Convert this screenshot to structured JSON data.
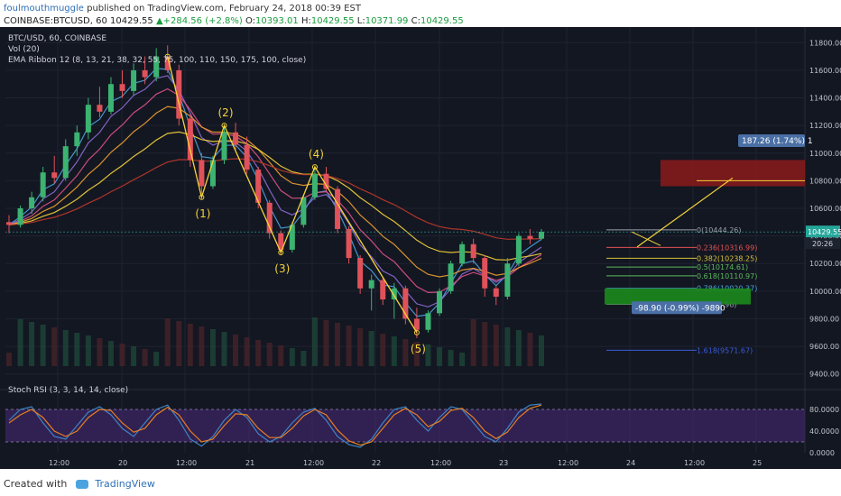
{
  "header": {
    "author": "foulmouthmuggle",
    "published": "published on TradingView.com, February 24, 2018 00:39 EST",
    "symbol": "COINBASE:BTCUSD, 60",
    "last": "10429.55",
    "change": "+284.56 (+2.8%)",
    "o_label": "O:",
    "o_val": "10393.01",
    "h_label": "H:",
    "h_val": "10429.55",
    "l_label": "L:",
    "l_val": "10371.99",
    "c_label": "C:",
    "c_val": "10429.55"
  },
  "legend": {
    "title": "BTC/USD, 60, COINBASE",
    "vol": "Vol (20)",
    "ema": "EMA Ribbon 12 (8, 13, 21, 38, 32, 55, 75, 100, 110, 150, 175, 100, close)",
    "stoch": "Stoch RSI (3, 3, 14, 14, close)"
  },
  "footer": {
    "created": "Created with",
    "brand": "TradingView"
  },
  "colors": {
    "bg": "#131722",
    "up": "#26a69a",
    "down": "#ef5350",
    "upc": "#3cb371",
    "downc": "#e0525a",
    "fib_box_top": "#8b1a1a",
    "fib_box_bottom": "#1d8a1d",
    "yellow": "#f5d33a"
  },
  "chart_data": {
    "type": "candlestick",
    "x_ticks": [
      "12:00",
      "20",
      "12:00",
      "21",
      "12:00",
      "22",
      "12:00",
      "23",
      "12:00",
      "24",
      "12:00",
      "25"
    ],
    "y_ticks": [
      11800,
      11600,
      11400,
      11200,
      11000,
      10800,
      10600,
      10400,
      10200,
      10000,
      9800,
      9600,
      9400
    ],
    "ylim": [
      9300,
      11900
    ],
    "stoch_ticks": [
      "80.0000",
      "40.0000",
      "0.0000"
    ],
    "price_label": "10429.55",
    "time_label": "20:26",
    "wave_labels": [
      "(1)",
      "(2)",
      "(3)",
      "(4)",
      "(5)"
    ],
    "wave_points": [
      [
        0.0,
        11700
      ],
      [
        1.0,
        10680
      ],
      [
        2.0,
        11200
      ],
      [
        3.0,
        10280
      ],
      [
        4.0,
        10900
      ],
      [
        5.0,
        9700
      ]
    ],
    "fib_levels": [
      {
        "label": "0(10444.26)",
        "value": 10444.26,
        "color": "#9aa0ab"
      },
      {
        "label": "0.236(10316.99)",
        "value": 10316.99,
        "color": "#e05252"
      },
      {
        "label": "0.382(10238.25)",
        "value": 10238.25,
        "color": "#d6c23a"
      },
      {
        "label": "0.5(10174.61)",
        "value": 10174.61,
        "color": "#5cb85c"
      },
      {
        "label": "0.618(10110.97)",
        "value": 10110.97,
        "color": "#5cb85c"
      },
      {
        "label": "0.786(10020.37)",
        "value": 10020.37,
        "color": "#4aa3df"
      },
      {
        "label": "1(9904.96)",
        "value": 9904.96,
        "color": "#9aa0ab"
      },
      {
        "label": "1.618(9571.67)",
        "value": 9571.67,
        "color": "#3b5bdb"
      }
    ],
    "target_label": "187.26 (1.74%) 1",
    "stop_label": "-98.90 (-0.99%) -9890",
    "candles": [
      [
        10500,
        10550,
        10420,
        10480
      ],
      [
        10480,
        10620,
        10460,
        10600
      ],
      [
        10600,
        10720,
        10560,
        10680
      ],
      [
        10680,
        10900,
        10650,
        10860
      ],
      [
        10860,
        10980,
        10780,
        10820
      ],
      [
        10820,
        11100,
        10800,
        11050
      ],
      [
        11050,
        11200,
        10980,
        11150
      ],
      [
        11150,
        11400,
        11100,
        11350
      ],
      [
        11350,
        11480,
        11260,
        11300
      ],
      [
        11300,
        11550,
        11280,
        11500
      ],
      [
        11500,
        11600,
        11400,
        11450
      ],
      [
        11450,
        11650,
        11420,
        11600
      ],
      [
        11600,
        11700,
        11500,
        11550
      ],
      [
        11550,
        11760,
        11520,
        11700
      ],
      [
        11700,
        11780,
        11580,
        11600
      ],
      [
        11600,
        11640,
        11200,
        11250
      ],
      [
        11250,
        11280,
        10900,
        10950
      ],
      [
        10950,
        11000,
        10700,
        10760
      ],
      [
        10760,
        10980,
        10740,
        10950
      ],
      [
        10950,
        11200,
        10920,
        11150
      ],
      [
        11150,
        11220,
        11020,
        11060
      ],
      [
        11060,
        11120,
        10850,
        10880
      ],
      [
        10880,
        10900,
        10600,
        10640
      ],
      [
        10640,
        10660,
        10380,
        10420
      ],
      [
        10420,
        10440,
        10260,
        10300
      ],
      [
        10300,
        10500,
        10280,
        10480
      ],
      [
        10480,
        10700,
        10460,
        10680
      ],
      [
        10680,
        10880,
        10660,
        10850
      ],
      [
        10850,
        10900,
        10720,
        10740
      ],
      [
        10740,
        10760,
        10420,
        10450
      ],
      [
        10450,
        10470,
        10200,
        10240
      ],
      [
        10240,
        10260,
        9980,
        10020
      ],
      [
        10020,
        10120,
        9860,
        10080
      ],
      [
        10080,
        10100,
        9900,
        9940
      ],
      [
        9940,
        10060,
        9800,
        10020
      ],
      [
        10020,
        10040,
        9760,
        9800
      ],
      [
        9800,
        9880,
        9660,
        9720
      ],
      [
        9720,
        9860,
        9700,
        9840
      ],
      [
        9840,
        10020,
        9820,
        10000
      ],
      [
        10000,
        10220,
        9980,
        10200
      ],
      [
        10200,
        10360,
        10180,
        10340
      ],
      [
        10340,
        10380,
        10200,
        10240
      ],
      [
        10240,
        10260,
        9960,
        10020
      ],
      [
        10020,
        10040,
        9900,
        9960
      ],
      [
        9960,
        10240,
        9940,
        10200
      ],
      [
        10200,
        10420,
        10180,
        10400
      ],
      [
        10400,
        10450,
        10340,
        10380
      ],
      [
        10380,
        10450,
        10370,
        10430
      ]
    ],
    "stoch_k": [
      60,
      80,
      85,
      55,
      30,
      25,
      50,
      75,
      85,
      70,
      45,
      30,
      55,
      80,
      88,
      60,
      25,
      12,
      30,
      60,
      80,
      65,
      35,
      20,
      30,
      55,
      75,
      82,
      60,
      30,
      15,
      10,
      25,
      55,
      80,
      85,
      60,
      40,
      65,
      85,
      80,
      55,
      30,
      20,
      45,
      75,
      88,
      90
    ],
    "stoch_d": [
      55,
      70,
      80,
      65,
      40,
      30,
      40,
      65,
      80,
      78,
      55,
      38,
      45,
      70,
      84,
      70,
      40,
      20,
      25,
      50,
      72,
      70,
      45,
      28,
      28,
      45,
      68,
      80,
      70,
      42,
      22,
      14,
      20,
      45,
      70,
      82,
      70,
      48,
      58,
      78,
      82,
      65,
      40,
      26,
      38,
      65,
      82,
      88
    ]
  }
}
